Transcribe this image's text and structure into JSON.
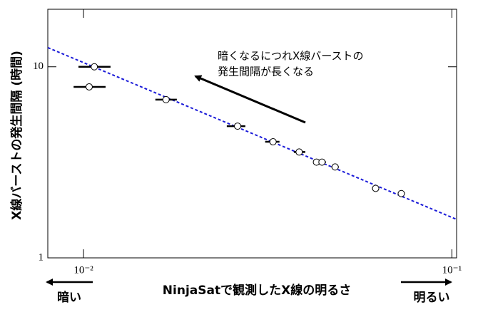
{
  "chart_data": {
    "type": "scatter",
    "x_label": "NinjaSatで観測したX線の明るさ",
    "y_label": "X線バーストの発生間隔 (時間)",
    "xscale": "log",
    "yscale": "log",
    "xlim": [
      0.008,
      0.103
    ],
    "ylim": [
      1,
      20
    ],
    "xticks": [
      {
        "value": 0.01,
        "label": "10⁻²"
      },
      {
        "value": 0.1,
        "label": "10⁻¹"
      }
    ],
    "yticks": [
      1,
      10
    ],
    "series": [
      {
        "color": "#000000",
        "x": [
          0.0107,
          0.01036,
          0.01675,
          0.0262,
          0.0327,
          0.0385,
          0.0429,
          0.0444,
          0.0482,
          0.0621,
          0.0729
        ],
        "y": [
          10,
          7.85,
          6.73,
          4.89,
          4.05,
          3.58,
          3.17,
          3.17,
          2.99,
          2.31,
          2.17
        ],
        "x_low": [
          0.00969,
          0.0094,
          0.01567,
          0.02449,
          0.03113,
          0.03724,
          0.042,
          0.0435,
          0.0471,
          0.0607,
          0.0713
        ],
        "x_high": [
          0.01184,
          0.01148,
          0.01792,
          0.0275,
          0.03404,
          0.04,
          0.0439,
          0.0455,
          0.0493,
          0.0635,
          0.0745
        ]
      }
    ],
    "fit": {
      "color": "#1a1ad8",
      "x": [
        0.008,
        0.103
      ],
      "y": [
        12.6,
        1.59
      ]
    },
    "annotation": [
      "暗くなるにつれX線バーストの",
      "発生間隔が長くなる"
    ],
    "left_label": "暗い",
    "right_label": "明るい"
  }
}
